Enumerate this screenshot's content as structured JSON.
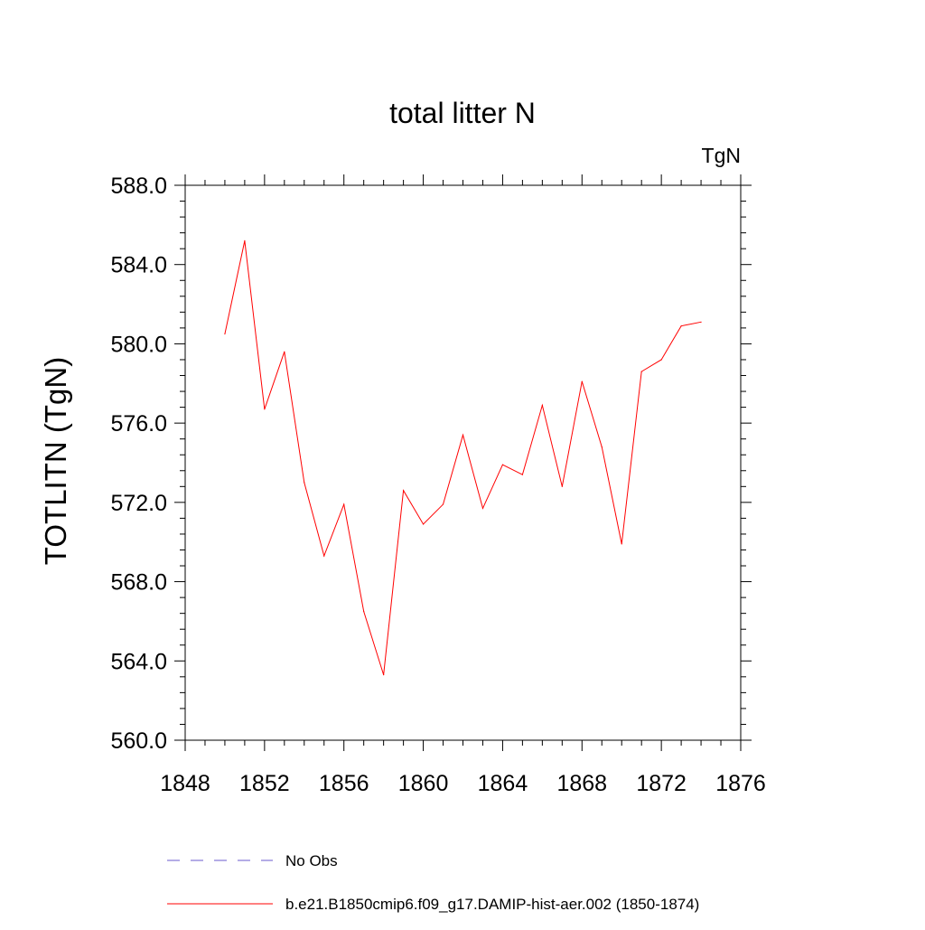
{
  "chart_data": {
    "type": "line",
    "title": "total litter N",
    "units_label": "TgN",
    "ylabel": "TOTLITN  (TgN)",
    "xlabel": "",
    "xlim": [
      1848,
      1876
    ],
    "ylim": [
      560,
      588
    ],
    "x_ticks": [
      1848,
      1852,
      1856,
      1860,
      1864,
      1868,
      1872,
      1876
    ],
    "y_ticks": [
      "560.0",
      "564.0",
      "568.0",
      "572.0",
      "576.0",
      "580.0",
      "584.0",
      "588.0"
    ],
    "grid": false,
    "series": [
      {
        "name": "b.e21.B1850cmip6.f09_g17.DAMIP-hist-aer.002 (1850-1874)",
        "color": "#ff0000",
        "x": [
          1850,
          1851,
          1852,
          1853,
          1854,
          1855,
          1856,
          1857,
          1858,
          1859,
          1860,
          1861,
          1862,
          1863,
          1864,
          1865,
          1866,
          1867,
          1868,
          1869,
          1870,
          1871,
          1872,
          1873,
          1874
        ],
        "y": [
          580.5,
          585.2,
          576.7,
          579.6,
          573.0,
          569.3,
          571.9,
          566.5,
          563.3,
          572.6,
          570.9,
          571.9,
          575.4,
          571.7,
          573.9,
          573.4,
          576.9,
          572.8,
          578.1,
          574.8,
          569.9,
          578.6,
          579.2,
          580.9,
          581.1
        ]
      }
    ],
    "legend": [
      {
        "label": "No Obs",
        "color": "#6a5acd",
        "style": "dashed"
      },
      {
        "label": "b.e21.B1850cmip6.f09_g17.DAMIP-hist-aer.002 (1850-1874)",
        "color": "#ff0000",
        "style": "solid"
      }
    ],
    "legend_position": "bottom"
  }
}
